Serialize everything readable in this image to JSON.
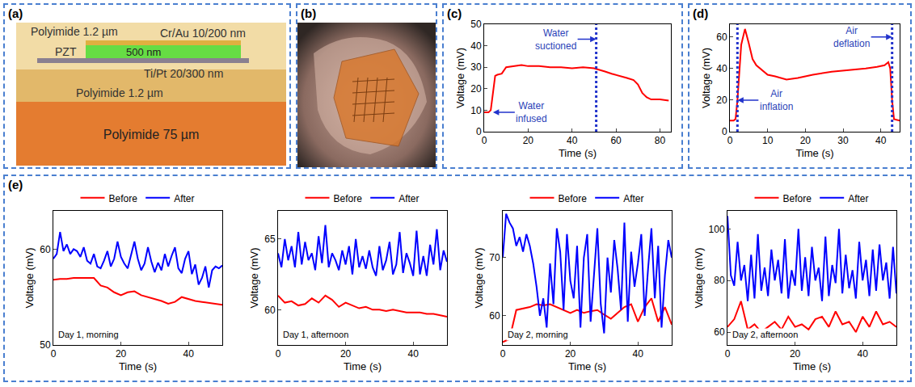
{
  "diagram": {
    "panel": "(a)",
    "top_layer": "Polyimide 1.2 µm",
    "electrode_top": "Cr/Au 10/200 nm",
    "piezo": "PZT",
    "piezo_thickness": "500 nm",
    "electrode_bottom": "Ti/Pt 20/300 nm",
    "middle_layer": "Polyimide 1.2 µm",
    "substrate": "Polyimide 75 µm"
  },
  "photo": {
    "panel": "(b)"
  },
  "group_e": {
    "panel": "(e)"
  },
  "chart_data": [
    {
      "type": "line",
      "panel": "(c)",
      "x_label": "Time (s)",
      "y_label": "Voltage (mV)",
      "xlim": [
        0,
        85
      ],
      "xticks": [
        0,
        20,
        40,
        60,
        80
      ],
      "ylim": [
        0,
        50
      ],
      "yticks": [
        0,
        10,
        20,
        30,
        40,
        50
      ],
      "grid": false,
      "series": [
        {
          "color": "#ff0000",
          "x": [
            0,
            2,
            3,
            4,
            5,
            6,
            8,
            10,
            14,
            17,
            20,
            25,
            30,
            35,
            40,
            45,
            50,
            52,
            55,
            58,
            62,
            65,
            68,
            70,
            72,
            74,
            76,
            80,
            84
          ],
          "values": [
            9,
            9,
            10,
            18,
            26,
            26.5,
            27,
            30,
            30.5,
            31,
            30.5,
            30.5,
            30,
            30,
            29.5,
            30,
            29.5,
            29,
            28,
            27,
            26,
            25,
            24,
            22,
            18,
            16,
            15,
            15,
            14.5
          ]
        }
      ],
      "vlines": [
        51
      ],
      "annotations": [
        {
          "text": "Water infused",
          "x": 4,
          "y": 9
        },
        {
          "text": "Water suctioned",
          "x": 51,
          "y": 43
        }
      ]
    },
    {
      "type": "line",
      "panel": "(d)",
      "x_label": "Time (s)",
      "y_label": "Voltage (mV)",
      "xlim": [
        0,
        45
      ],
      "xticks": [
        0,
        10,
        20,
        30,
        40
      ],
      "ylim": [
        0,
        68
      ],
      "yticks": [
        0,
        20,
        40,
        60
      ],
      "grid": false,
      "series": [
        {
          "color": "#ff0000",
          "x": [
            0,
            1,
            1.5,
            2,
            3,
            4,
            5,
            6,
            7,
            8,
            10,
            12,
            15,
            18,
            22,
            27,
            32,
            36,
            39,
            41,
            42,
            42.5,
            43,
            43.5,
            45
          ],
          "values": [
            7,
            7,
            8,
            20,
            55,
            65,
            56,
            46,
            42,
            40,
            36,
            35,
            33,
            34,
            36,
            38,
            39,
            40,
            41,
            42,
            44,
            40,
            20,
            8,
            7
          ]
        }
      ],
      "vlines": [
        2,
        43
      ],
      "annotations": [
        {
          "text": "Air inflation",
          "x": 2,
          "y": 20
        },
        {
          "text": "Air deflation",
          "x": 43,
          "y": 60
        }
      ]
    },
    {
      "type": "line",
      "x_label": "Time (s)",
      "y_label": "Voltage (mV)",
      "xlim": [
        0,
        50
      ],
      "xticks": [
        0,
        20,
        40
      ],
      "ylim": [
        50,
        64
      ],
      "yticks": [
        50,
        60
      ],
      "grid": false,
      "legend": "top",
      "series": [
        {
          "name": "Before",
          "color": "#ff0000",
          "x": [
            0,
            2,
            4,
            6,
            8,
            10,
            12,
            14,
            16,
            18,
            20,
            22,
            24,
            26,
            28,
            30,
            32,
            34,
            36,
            38,
            40,
            42,
            44,
            46,
            48,
            50
          ],
          "values": [
            56.8,
            56.9,
            56.9,
            57,
            57,
            57,
            57,
            56.2,
            56,
            55.5,
            55.2,
            55.5,
            55.6,
            55.2,
            55,
            54.8,
            54.6,
            54.3,
            54.5,
            55,
            54.8,
            54.6,
            54.5,
            54.4,
            54.3,
            54.2
          ]
        },
        {
          "name": "After",
          "color": "#0000ff",
          "x": [
            0,
            1,
            2,
            3,
            4,
            5,
            6,
            7,
            8,
            9,
            10,
            11,
            12,
            13,
            14,
            15,
            16,
            17,
            18,
            19,
            20,
            21,
            22,
            23,
            24,
            25,
            26,
            27,
            28,
            29,
            30,
            31,
            32,
            33,
            34,
            35,
            36,
            37,
            38,
            39,
            40,
            41,
            42,
            43,
            44,
            45,
            46,
            47,
            48,
            49,
            50
          ],
          "values": [
            59,
            59.5,
            61.8,
            59.8,
            60.5,
            59.5,
            60,
            59.8,
            59.2,
            60.2,
            58.8,
            58.5,
            59.5,
            58.2,
            58,
            58.8,
            59.8,
            58.2,
            59,
            60.8,
            59.2,
            58.5,
            58,
            59.5,
            60.8,
            59,
            57.8,
            58.5,
            60.2,
            58.7,
            57.6,
            58.6,
            57.8,
            59.5,
            58.2,
            59.3,
            60.2,
            58,
            57.5,
            59,
            59.8,
            57.4,
            58.4,
            56.3,
            57,
            58.2,
            56,
            57.8,
            58.2,
            58,
            58.3
          ]
        }
      ],
      "annotations": [
        {
          "text": "Day 1, morning"
        }
      ]
    },
    {
      "type": "line",
      "x_label": "Time (s)",
      "y_label": "Voltage (mV)",
      "xlim": [
        0,
        50
      ],
      "xticks": [
        0,
        20,
        40
      ],
      "ylim": [
        57.5,
        67
      ],
      "yticks": [
        60,
        65
      ],
      "grid": false,
      "legend": "top",
      "series": [
        {
          "name": "Before",
          "color": "#ff0000",
          "x": [
            0,
            2,
            4,
            6,
            8,
            10,
            12,
            14,
            16,
            18,
            20,
            22,
            24,
            26,
            28,
            30,
            32,
            34,
            36,
            38,
            40,
            42,
            44,
            46,
            48,
            50
          ],
          "values": [
            61,
            60.5,
            60.6,
            60.3,
            60.4,
            60.8,
            60.5,
            61,
            60.7,
            60.2,
            60.5,
            60.3,
            60.1,
            60.2,
            60,
            60,
            59.9,
            60,
            59.9,
            59.8,
            59.8,
            59.8,
            59.7,
            59.7,
            59.6,
            59.5
          ]
        },
        {
          "name": "After",
          "color": "#0000ff",
          "x": [
            0,
            1,
            2,
            3,
            4,
            5,
            6,
            7,
            8,
            9,
            10,
            11,
            12,
            13,
            14,
            15,
            16,
            17,
            18,
            19,
            20,
            21,
            22,
            23,
            24,
            25,
            26,
            27,
            28,
            29,
            30,
            31,
            32,
            33,
            34,
            35,
            36,
            37,
            38,
            39,
            40,
            41,
            42,
            43,
            44,
            45,
            46,
            47,
            48,
            49,
            50
          ],
          "values": [
            64,
            63,
            65,
            63.5,
            64.5,
            63,
            65.5,
            63.2,
            64.8,
            63.5,
            64,
            62.8,
            65.2,
            63.3,
            66,
            63,
            64,
            63.5,
            62.8,
            64.2,
            63.2,
            64.5,
            62.5,
            65,
            63,
            63.8,
            62.9,
            64.2,
            63,
            62.4,
            64.5,
            62.8,
            63.5,
            64.8,
            62.5,
            63.2,
            65.5,
            62.6,
            64,
            63.3,
            62.4,
            65.6,
            62.5,
            63.8,
            62.4,
            64.6,
            63.2,
            65.7,
            62.8,
            64.2,
            63.4
          ]
        }
      ],
      "annotations": [
        {
          "text": "Day 1, afternoon"
        }
      ]
    },
    {
      "type": "line",
      "x_label": "Time (s)",
      "y_label": "Voltage (mV)",
      "xlim": [
        0,
        50
      ],
      "xticks": [
        0,
        20,
        40
      ],
      "ylim": [
        55,
        78
      ],
      "yticks": [
        60,
        70
      ],
      "grid": false,
      "legend": "top",
      "series": [
        {
          "name": "Before",
          "color": "#ff0000",
          "x": [
            0,
            2,
            4,
            6,
            8,
            10,
            12,
            14,
            16,
            18,
            20,
            22,
            24,
            26,
            28,
            30,
            32,
            34,
            36,
            38,
            40,
            42,
            44,
            46,
            48,
            50
          ],
          "values": [
            55.5,
            56,
            61,
            61.2,
            61.5,
            62,
            61.8,
            62,
            61.5,
            61,
            60.5,
            61,
            60.5,
            60.8,
            61,
            60.2,
            59.5,
            60.5,
            61.5,
            62,
            59,
            61.5,
            63,
            59,
            61.5,
            58.5
          ]
        },
        {
          "name": "After",
          "color": "#0000ff",
          "x": [
            0,
            1,
            2,
            3,
            4,
            5,
            6,
            7,
            8,
            9,
            10,
            11,
            12,
            13,
            14,
            15,
            16,
            17,
            18,
            19,
            20,
            21,
            22,
            23,
            24,
            25,
            26,
            27,
            28,
            29,
            30,
            31,
            32,
            33,
            34,
            35,
            36,
            37,
            38,
            39,
            40,
            41,
            42,
            43,
            44,
            45,
            46,
            47,
            48,
            49,
            50
          ],
          "values": [
            70,
            77.5,
            76,
            75,
            72,
            73.5,
            71,
            74,
            72,
            69,
            65,
            60,
            63,
            58,
            69,
            62,
            75,
            71,
            61,
            74,
            66,
            63,
            72,
            58,
            70,
            74,
            59,
            67,
            75,
            62,
            57,
            70,
            64,
            73,
            68,
            61,
            76,
            59,
            71,
            65,
            69,
            74,
            60,
            68,
            75,
            63,
            72,
            58,
            67,
            73,
            70
          ]
        }
      ],
      "annotations": [
        {
          "text": "Day 2, morning"
        }
      ]
    },
    {
      "type": "line",
      "x_label": "Time (s)",
      "y_label": "Voltage (mV)",
      "xlim": [
        0,
        50
      ],
      "xticks": [
        0,
        20,
        40
      ],
      "ylim": [
        55,
        107
      ],
      "yticks": [
        60,
        80,
        100
      ],
      "grid": false,
      "legend": "top",
      "series": [
        {
          "name": "Before",
          "color": "#ff0000",
          "x": [
            0,
            2,
            4,
            6,
            8,
            10,
            12,
            14,
            16,
            18,
            20,
            22,
            24,
            26,
            28,
            30,
            32,
            34,
            36,
            38,
            40,
            42,
            44,
            46,
            48,
            50
          ],
          "values": [
            62,
            65,
            72,
            61,
            63,
            60,
            62,
            64,
            61,
            66,
            62,
            63,
            61,
            65,
            66,
            62,
            68,
            63,
            64,
            60,
            66,
            62,
            68,
            63,
            64,
            62
          ]
        },
        {
          "name": "After",
          "color": "#0000ff",
          "x": [
            0,
            1,
            2,
            3,
            4,
            5,
            6,
            7,
            8,
            9,
            10,
            11,
            12,
            13,
            14,
            15,
            16,
            17,
            18,
            19,
            20,
            21,
            22,
            23,
            24,
            25,
            26,
            27,
            28,
            29,
            30,
            31,
            32,
            33,
            34,
            35,
            36,
            37,
            38,
            39,
            40,
            41,
            42,
            43,
            44,
            45,
            46,
            47,
            48,
            49,
            50
          ],
          "values": [
            105,
            82,
            78,
            95,
            80,
            86,
            72,
            90,
            73,
            98,
            76,
            85,
            74,
            92,
            80,
            88,
            75,
            96,
            73,
            84,
            78,
            100,
            76,
            89,
            74,
            93,
            80,
            85,
            72,
            97,
            74,
            86,
            79,
            100,
            75,
            90,
            77,
            84,
            73,
            95,
            80,
            88,
            74,
            92,
            76,
            94,
            80,
            87,
            73,
            93,
            75
          ]
        }
      ],
      "annotations": [
        {
          "text": "Day 2, afternoon"
        }
      ]
    }
  ]
}
